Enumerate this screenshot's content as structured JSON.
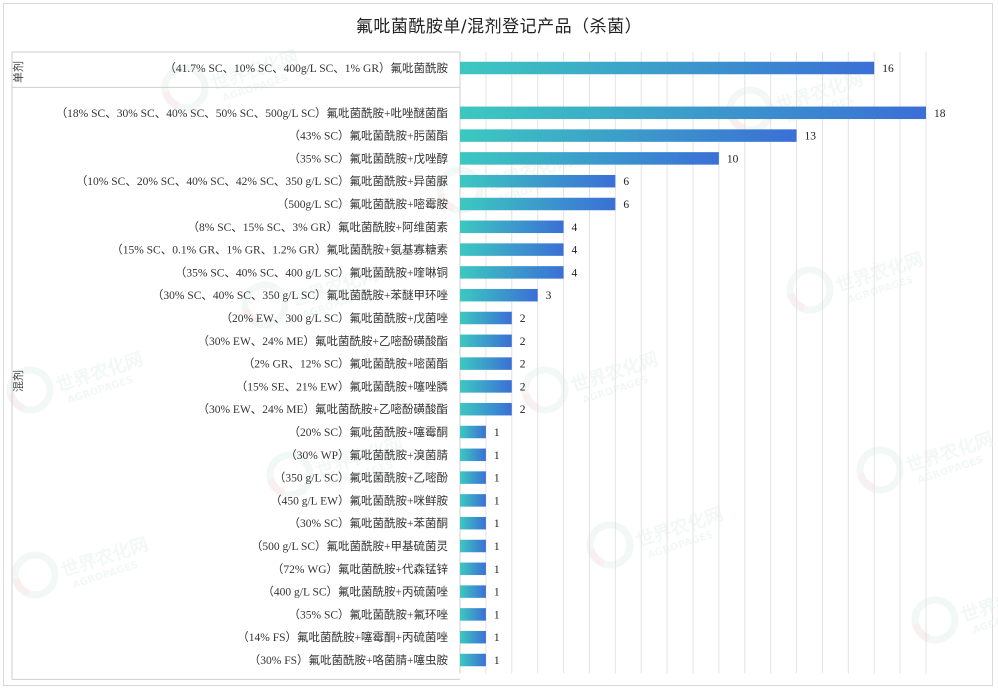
{
  "chart_data": {
    "type": "bar",
    "orientation": "horizontal",
    "title": "氟吡菌酰胺单/混剂登记产品（杀菌）",
    "xlabel": "",
    "ylabel": "",
    "xlim": [
      0,
      18
    ],
    "grid": true,
    "legend": "none",
    "groups": [
      {
        "name": "单剂",
        "categories": [
          "（41.7% SC、10% SC、400g/L SC、1% GR）氟吡菌酰胺"
        ]
      },
      {
        "name": "混剂",
        "categories": [
          "（18% SC、30% SC、40% SC、50% SC、500g/L SC）氟吡菌酰胺+吡唑醚菌酯",
          "（43% SC）氟吡菌酰胺+肟菌酯",
          "（35% SC）氟吡菌酰胺+戊唑醇",
          "（10% SC、20% SC、40% SC、42% SC、350 g/L SC）氟吡菌酰胺+异菌脲",
          "（500g/L SC）氟吡菌酰胺+嘧霉胺",
          "（8% SC、15% SC、3% GR）氟吡菌酰胺+阿维菌素",
          "（15% SC、0.1% GR、1% GR、1.2% GR）氟吡菌酰胺+氨基寡糖素",
          "（35% SC、40% SC、400 g/L SC）氟吡菌酰胺+喹啉铜",
          "（30% SC、40% SC、350 g/L SC）氟吡菌酰胺+苯醚甲环唑",
          "（20% EW、300 g/L SC）氟吡菌酰胺+戊菌唑",
          "（30% EW、24% ME）氟吡菌酰胺+乙嘧酚磺酸酯",
          "（2% GR、12% SC）氟吡菌酰胺+嘧菌酯",
          "（15% SE、21% EW）氟吡菌酰胺+噻唑膦",
          "（30% EW、24% ME）氟吡菌酰胺+乙嘧酚磺酸酯",
          "（20% SC）氟吡菌酰胺+噻霉酮",
          "（30% WP）氟吡菌酰胺+溴菌腈",
          "（350 g/L SC）氟吡菌酰胺+乙嘧酚",
          "（450 g/L EW）氟吡菌酰胺+咪鲜胺",
          "（30% SC）氟吡菌酰胺+苯菌酮",
          "（500 g/L SC）氟吡菌酰胺+甲基硫菌灵",
          "（72% WG）氟吡菌酰胺+代森锰锌",
          "（400 g/L SC）氟吡菌酰胺+丙硫菌唑",
          "（35% SC）氟吡菌酰胺+氟环唑",
          "（14% FS）氟吡菌酰胺+噻霉酮+丙硫菌唑",
          "（30% FS）氟吡菌酰胺+咯菌腈+噻虫胺"
        ]
      }
    ],
    "values": [
      16,
      18,
      13,
      10,
      6,
      6,
      4,
      4,
      4,
      3,
      2,
      2,
      2,
      2,
      2,
      1,
      1,
      1,
      1,
      1,
      1,
      1,
      1,
      1,
      1,
      1
    ],
    "bar_gradient": [
      "#3cc8c0",
      "#3b6fd6"
    ]
  },
  "watermark": {
    "text": "世界农化网",
    "subtext": "AGROPAGES",
    "color": "#e8f3ef",
    "accent": "#f6e3e3"
  }
}
